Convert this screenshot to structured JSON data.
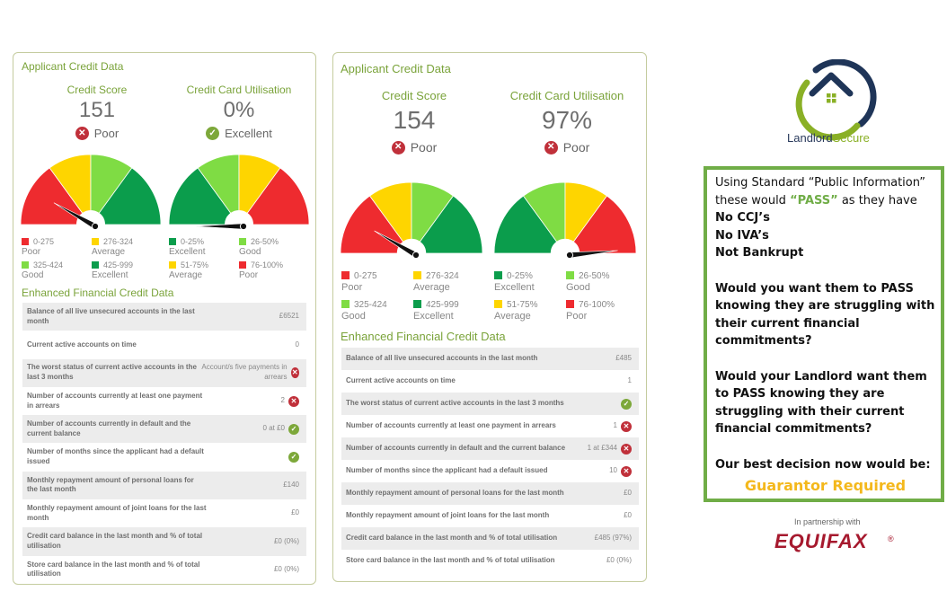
{
  "colors": {
    "red": "#ee2b2f",
    "yellow": "#fed500",
    "light_green": "#7fdc44",
    "dark_green": "#0b9d4c",
    "accent_green": "#7aa33a",
    "box_border": "#70ad47",
    "decision": "#f4b81c"
  },
  "panels": [
    {
      "title": "Applicant Credit Data",
      "credit_score": {
        "label": "Credit Score",
        "value": "151",
        "status": "Poor",
        "status_type": "bad",
        "needle_value": 151
      },
      "utilisation": {
        "label": "Credit Card Utilisation",
        "value": "0%",
        "status": "Excellent",
        "status_type": "good",
        "needle_value": 0
      },
      "score_legend": [
        {
          "range": "0-275",
          "name": "Poor",
          "color": "red"
        },
        {
          "range": "276-324",
          "name": "Average",
          "color": "yellow"
        },
        {
          "range": "325-424",
          "name": "Good",
          "color": "light_green"
        },
        {
          "range": "425-999",
          "name": "Excellent",
          "color": "dark_green"
        }
      ],
      "util_legend": [
        {
          "range": "0-25%",
          "name": "Excellent",
          "color": "dark_green"
        },
        {
          "range": "26-50%",
          "name": "Good",
          "color": "light_green"
        },
        {
          "range": "51-75%",
          "name": "Average",
          "color": "yellow"
        },
        {
          "range": "76-100%",
          "name": "Poor",
          "color": "red"
        }
      ],
      "enhanced_title": "Enhanced Financial Credit Data",
      "rows": [
        {
          "label": "Balance of all live unsecured accounts in the last month",
          "value": "£6521",
          "icon": ""
        },
        {
          "label": "Current active accounts on time",
          "value": "0",
          "icon": ""
        },
        {
          "label": "The worst status of current active accounts in the last 3 months",
          "value": "Account/s five payments in arrears",
          "icon": "bad"
        },
        {
          "label": "Number of accounts currently at least one payment in arrears",
          "value": "2",
          "icon": "bad"
        },
        {
          "label": "Number of accounts currently in default and the current balance",
          "value": "0 at £0",
          "icon": "good"
        },
        {
          "label": "Number of months since the applicant had a default issued",
          "value": "",
          "icon": "good"
        },
        {
          "label": "Monthly repayment amount of personal loans for the last month",
          "value": "£140",
          "icon": ""
        },
        {
          "label": "Monthly repayment amount of joint loans for the last month",
          "value": "£0",
          "icon": ""
        },
        {
          "label": "Credit card balance in the last month and % of total utilisation",
          "value": "£0 (0%)",
          "icon": ""
        },
        {
          "label": "Store card balance in the last month and % of total utilisation",
          "value": "£0 (0%)",
          "icon": ""
        }
      ]
    },
    {
      "title": "Applicant Credit Data",
      "credit_score": {
        "label": "Credit Score",
        "value": "154",
        "status": "Poor",
        "status_type": "bad",
        "needle_value": 154
      },
      "utilisation": {
        "label": "Credit Card Utilisation",
        "value": "97%",
        "status": "Poor",
        "status_type": "bad",
        "needle_value": 97
      },
      "score_legend": [
        {
          "range": "0-275",
          "name": "Poor",
          "color": "red"
        },
        {
          "range": "276-324",
          "name": "Average",
          "color": "yellow"
        },
        {
          "range": "325-424",
          "name": "Good",
          "color": "light_green"
        },
        {
          "range": "425-999",
          "name": "Excellent",
          "color": "dark_green"
        }
      ],
      "util_legend": [
        {
          "range": "0-25%",
          "name": "Excellent",
          "color": "dark_green"
        },
        {
          "range": "26-50%",
          "name": "Good",
          "color": "light_green"
        },
        {
          "range": "51-75%",
          "name": "Average",
          "color": "yellow"
        },
        {
          "range": "76-100%",
          "name": "Poor",
          "color": "red"
        }
      ],
      "enhanced_title": "Enhanced Financial Credit Data",
      "rows": [
        {
          "label": "Balance of all live unsecured accounts in the last month",
          "value": "£485",
          "icon": ""
        },
        {
          "label": "Current active accounts on time",
          "value": "1",
          "icon": ""
        },
        {
          "label": "The worst status of current active accounts in the last 3 months",
          "value": "",
          "icon": "good"
        },
        {
          "label": "Number of accounts currently at least one payment in arrears",
          "value": "1",
          "icon": "bad"
        },
        {
          "label": "Number of accounts currently in default and the current balance",
          "value": "1 at £344",
          "icon": "bad"
        },
        {
          "label": "Number of months since the applicant had a default issued",
          "value": "10",
          "icon": "bad"
        },
        {
          "label": "Monthly repayment amount of personal loans for the last month",
          "value": "£0",
          "icon": ""
        },
        {
          "label": "Monthly repayment amount of joint loans for the last month",
          "value": "£0",
          "icon": ""
        },
        {
          "label": "Credit card balance in the last month and % of total utilisation",
          "value": "£485 (97%)",
          "icon": ""
        },
        {
          "label": "Store card balance in the last month and % of total utilisation",
          "value": "£0 (0%)",
          "icon": ""
        }
      ]
    }
  ],
  "brand": {
    "name_part1": "Landlord",
    "name_part2": "Secure"
  },
  "message": {
    "line1": "Using Standard “Public Information”",
    "line2_pre": "these would ",
    "line2_pass": "“PASS”",
    "line2_post": " as they have",
    "line3": "No CCJ’s",
    "line4": "No IVA’s",
    "line5": "Not Bankrupt",
    "q1": "Would you want them to PASS knowing they are struggling with their current financial commitments?",
    "q2": "Would your Landlord want them to PASS knowing they are struggling with their current financial commitments?",
    "decision_label": "Our best decision now would be:",
    "decision": "Guarantor Required"
  },
  "partner": {
    "text": "In partnership with",
    "name": "EQUIFAX",
    "reg": "®"
  }
}
